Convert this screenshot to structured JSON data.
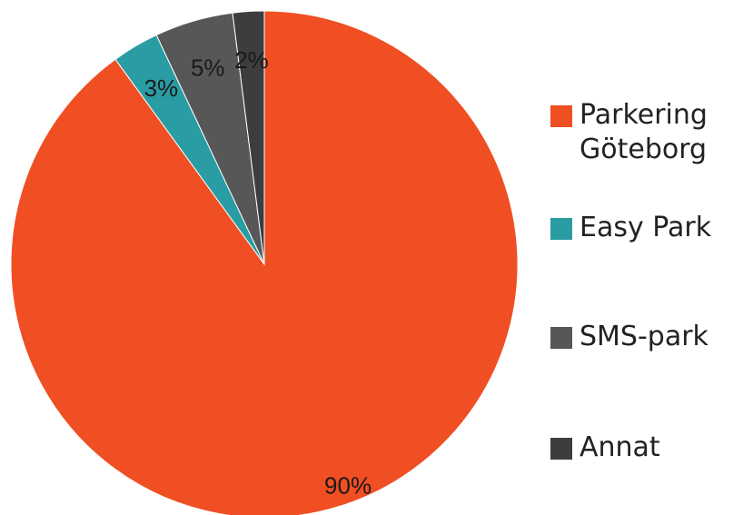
{
  "chart_data": {
    "type": "pie",
    "title": "",
    "categories": [
      "Parkering Göteborg",
      "Easy Park",
      "SMS-park",
      "Annat"
    ],
    "values": [
      90,
      3,
      5,
      2
    ],
    "value_labels": [
      "90%",
      "3%",
      "5%",
      "2%"
    ],
    "colors": [
      "#f04e23",
      "#2a9ca3",
      "#575757",
      "#3d3d3f"
    ],
    "start": "12 o'clock",
    "direction": "clockwise",
    "legend_position": "right"
  },
  "legend": {
    "items": [
      {
        "label": "Parkering\nGöteborg",
        "color": "#f04e23"
      },
      {
        "label": "Easy Park",
        "color": "#2a9ca3"
      },
      {
        "label": "SMS-park",
        "color": "#575757"
      },
      {
        "label": "Annat",
        "color": "#3d3d3f"
      }
    ]
  }
}
